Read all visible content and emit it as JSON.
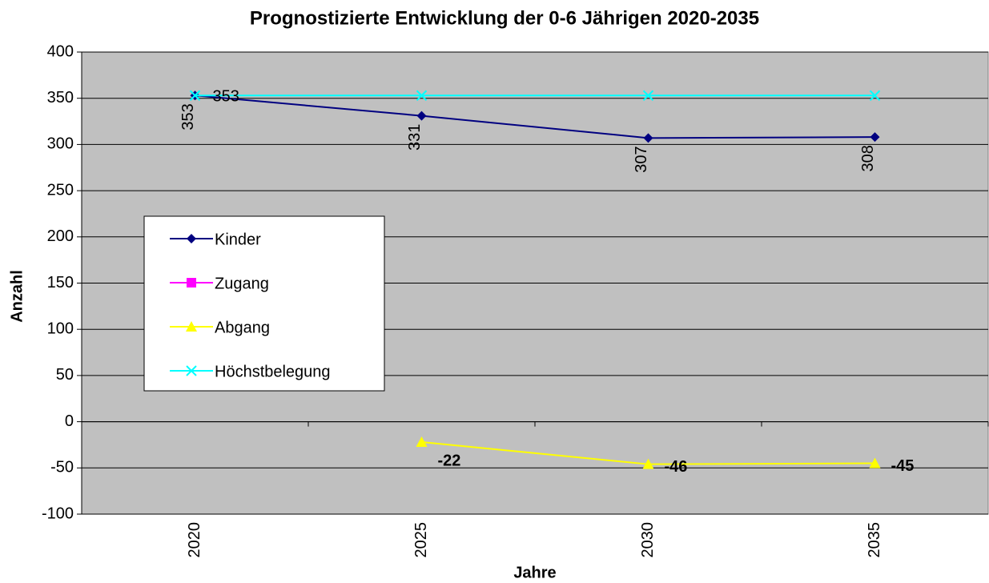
{
  "chart_data": {
    "type": "line",
    "title": "Prognostizierte Entwicklung der 0-6 Jährigen 2020-2035",
    "x_label": "Jahre",
    "y_label": "Anzahl",
    "categories": [
      "2020",
      "2025",
      "2030",
      "2035"
    ],
    "series": [
      {
        "name": "Kinder",
        "color": "#000080",
        "marker": "diamond",
        "values": [
          353,
          331,
          307,
          308
        ],
        "value_labels": [
          "353",
          "331",
          "307",
          "308"
        ],
        "label_style": "rotated"
      },
      {
        "name": "Zugang",
        "color": "#ff00ff",
        "marker": "square",
        "values": [
          null,
          null,
          null,
          null
        ]
      },
      {
        "name": "Abgang",
        "color": "#ffff00",
        "marker": "triangle",
        "values": [
          null,
          -22,
          -46,
          -45
        ],
        "value_labels": [
          null,
          "-22",
          "-46",
          "-45"
        ],
        "label_style": "bold"
      },
      {
        "name": "Höchstbelegung",
        "color": "#00ffff",
        "marker": "x",
        "values": [
          353,
          353,
          353,
          353
        ],
        "value_labels": [
          "353",
          null,
          null,
          null
        ],
        "label_style": "plain"
      }
    ],
    "ylim": [
      -100,
      400
    ],
    "yticks": [
      -100,
      -50,
      0,
      50,
      100,
      150,
      200,
      250,
      300,
      350,
      400
    ],
    "grid": true,
    "legend": "left",
    "background": "#c0c0c0"
  }
}
